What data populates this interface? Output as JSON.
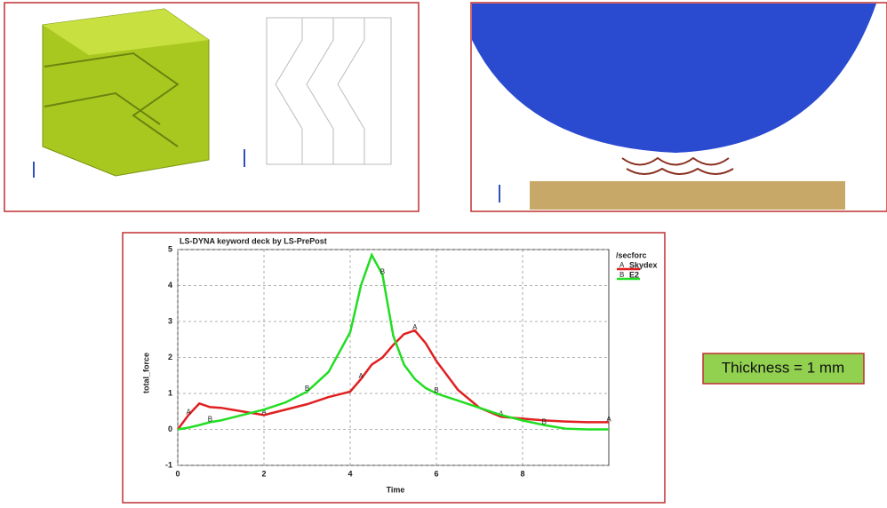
{
  "chart_data": {
    "type": "line",
    "title": "LS-DYNA keyword deck by LS-PrePost",
    "xlabel": "Time",
    "ylabel": "total_force",
    "legend_title": "/secforc",
    "x": [
      0,
      0.25,
      0.5,
      0.75,
      1,
      1.5,
      2,
      2.5,
      3,
      3.5,
      4,
      4.25,
      4.5,
      4.75,
      5,
      5.25,
      5.5,
      5.75,
      6,
      6.5,
      7,
      7.5,
      8,
      8.5,
      9,
      9.5,
      10
    ],
    "series": [
      {
        "name": "Skydex",
        "marker": "A",
        "color": "#e02020",
        "values": [
          0,
          0.4,
          0.72,
          0.62,
          0.6,
          0.5,
          0.4,
          0.55,
          0.7,
          0.9,
          1.05,
          1.4,
          1.8,
          2.0,
          2.35,
          2.65,
          2.75,
          2.4,
          1.9,
          1.1,
          0.6,
          0.35,
          0.3,
          0.25,
          0.22,
          0.2,
          0.2
        ]
      },
      {
        "name": "E2",
        "marker": "B",
        "color": "#22dd22",
        "values": [
          0,
          0.05,
          0.12,
          0.2,
          0.25,
          0.4,
          0.55,
          0.75,
          1.05,
          1.6,
          2.7,
          4.0,
          4.85,
          4.3,
          2.6,
          1.8,
          1.4,
          1.15,
          1.0,
          0.8,
          0.6,
          0.4,
          0.25,
          0.12,
          0.02,
          0,
          0
        ]
      }
    ],
    "xlim": [
      0,
      10
    ],
    "xticks": [
      0,
      2,
      4,
      6,
      8
    ],
    "ylim": [
      -1,
      5
    ],
    "yticks": [
      -1,
      0,
      1,
      2,
      3,
      4,
      5
    ],
    "grid": true
  },
  "callout": "Thickness = 1 mm"
}
